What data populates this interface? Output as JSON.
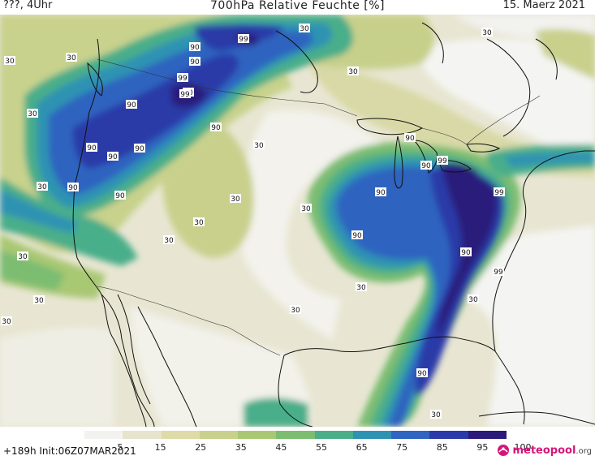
{
  "header": {
    "left": "???, 4Uhr",
    "title": "700hPa Relative Feuchte [%]",
    "date": "15. Maerz 2021"
  },
  "map": {
    "contour_labels": [
      "30",
      "90",
      "99",
      "30",
      "30",
      "30",
      "90",
      "99",
      "90",
      "90",
      "30",
      "30",
      "90",
      "90",
      "90",
      "90",
      "30",
      "30",
      "30",
      "30",
      "90",
      "90",
      "99",
      "99",
      "90",
      "90",
      "30",
      "90",
      "90",
      "99",
      "90",
      "99",
      "30",
      "30",
      "30",
      "90",
      "30",
      "30",
      "30",
      "30",
      "30"
    ]
  },
  "colorbar": {
    "ticks": [
      "5",
      "15",
      "25",
      "35",
      "45",
      "55",
      "65",
      "75",
      "85",
      "95",
      "100"
    ],
    "colors": [
      "#f2f2f0",
      "#e6e4cc",
      "#dedba9",
      "#c9d08c",
      "#a9c873",
      "#7cbd72",
      "#4aae8a",
      "#2e93b3",
      "#2f64c0",
      "#2a3aa8",
      "#2a1a7a"
    ]
  },
  "footer": {
    "run_info": "+189h Init:06Z07MAR2021",
    "logo_name": "meteopool",
    "logo_tld": ".org"
  }
}
